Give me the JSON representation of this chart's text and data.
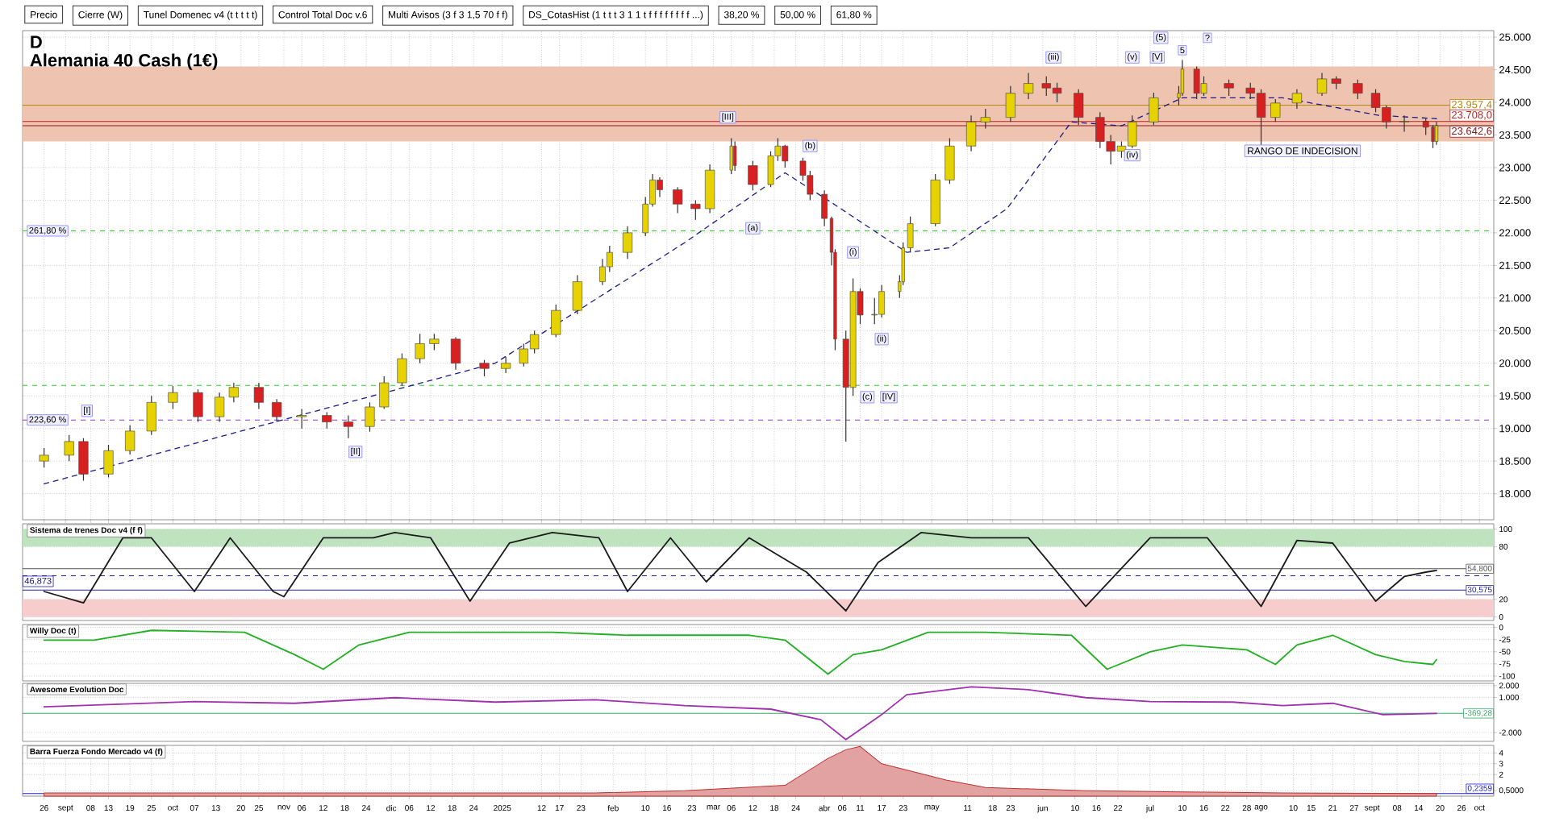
{
  "chart_data": [
    {
      "type": "candlestick",
      "title": "D",
      "subtitle": "Alemania 40 Cash (1€)",
      "annotations": [
        "Precio",
        "Cierre (W)",
        "Tunel Domenec v4 (t t t t t)",
        "Control Total Doc v.6",
        "Multi Avisos (3 f 3 1,5 70 f f)",
        "DS_CotasHist (1 t t t 3 1 1 t f f f f f f f f ...)",
        "38,20 %",
        "50,00 %",
        "61,80 %",
        {
          "text": "[III]",
          "x": "2025-03-05",
          "y": 23770
        },
        {
          "text": "(a)",
          "x": "2025-03-12",
          "y": 22070
        },
        {
          "text": "(b)",
          "x": "2025-03-28",
          "y": 23330
        },
        {
          "text": "(i)",
          "x": "2025-04-09",
          "y": 21700
        },
        {
          "text": "(ii)",
          "x": "2025-04-17",
          "y": 20370
        },
        {
          "text": "(c)",
          "x": "2025-04-13",
          "y": 19480
        },
        {
          "text": "[IV]",
          "x": "2025-04-19",
          "y": 19480
        },
        {
          "text": "(iii)",
          "x": "2025-06-04",
          "y": 24690
        },
        {
          "text": "(iv)",
          "x": "2025-06-26",
          "y": 23190
        },
        {
          "text": "(v)",
          "x": "2025-06-26",
          "y": 24690
        },
        {
          "text": "[V]",
          "x": "2025-07-03",
          "y": 24690
        },
        {
          "text": "(5)",
          "x": "2025-07-04",
          "y": 24990
        },
        {
          "text": "5",
          "x": "2025-07-10",
          "y": 24800
        },
        {
          "text": "?",
          "x": "2025-07-17",
          "y": 24990
        },
        {
          "text": "[I]",
          "x": "2024-09-07",
          "y": 19270
        },
        {
          "text": "261,80 %",
          "x": "2024-08-27",
          "y": 22030
        },
        {
          "text": "223,60 %",
          "x": "2024-08-27",
          "y": 19130
        },
        {
          "text": "[II]",
          "x": "2024-11-21",
          "y": 18640
        }
      ],
      "x": [
        "2024-08-26",
        "2024-09-02",
        "2024-09-06",
        "2024-09-13",
        "2024-09-19",
        "2024-09-25",
        "2024-10-01",
        "2024-10-08",
        "2024-10-14",
        "2024-10-18",
        "2024-10-25",
        "2024-10-30",
        "2024-11-06",
        "2024-11-13",
        "2024-11-19",
        "2024-11-25",
        "2024-11-29",
        "2024-12-04",
        "2024-12-09",
        "2024-12-13",
        "2024-12-19",
        "2024-12-27",
        "2025-01-02",
        "2025-01-07",
        "2025-01-10",
        "2025-01-16",
        "2025-01-22",
        "2025-01-29",
        "2025-01-31",
        "2025-02-05",
        "2025-02-10",
        "2025-02-12",
        "2025-02-14",
        "2025-02-19",
        "2025-02-24",
        "2025-02-28",
        "2025-03-06",
        "2025-03-07",
        "2025-03-12",
        "2025-03-17",
        "2025-03-19",
        "2025-03-21",
        "2025-03-26",
        "2025-03-28",
        "2025-04-01",
        "2025-04-03",
        "2025-04-04",
        "2025-04-07",
        "2025-04-09",
        "2025-04-11",
        "2025-04-15",
        "2025-04-17",
        "2025-04-22",
        "2025-04-23",
        "2025-04-25",
        "2025-05-02",
        "2025-05-06",
        "2025-05-12",
        "2025-05-16",
        "2025-05-23",
        "2025-05-28",
        "2025-06-02",
        "2025-06-05",
        "2025-06-11",
        "2025-06-17",
        "2025-06-20",
        "2025-06-23",
        "2025-06-26",
        "2025-07-02",
        "2025-07-09",
        "2025-07-10",
        "2025-07-14",
        "2025-07-16",
        "2025-07-23",
        "2025-07-29",
        "2025-08-01",
        "2025-08-05",
        "2025-08-11",
        "2025-08-18",
        "2025-08-22",
        "2025-08-28",
        "2025-09-02",
        "2025-09-05",
        "2025-09-10",
        "2025-09-16",
        "2025-09-18",
        "2025-09-19"
      ],
      "ohlc": [
        [
          18500,
          18700,
          18400,
          18590
        ],
        [
          18590,
          18900,
          18500,
          18800
        ],
        [
          18800,
          18850,
          18200,
          18300
        ],
        [
          18300,
          18750,
          18250,
          18660
        ],
        [
          18660,
          19050,
          18600,
          18960
        ],
        [
          18960,
          19500,
          18900,
          19400
        ],
        [
          19400,
          19650,
          19300,
          19550
        ],
        [
          19550,
          19600,
          19100,
          19180
        ],
        [
          19180,
          19550,
          19100,
          19480
        ],
        [
          19480,
          19700,
          19400,
          19630
        ],
        [
          19630,
          19700,
          19300,
          19400
        ],
        [
          19400,
          19450,
          19100,
          19180
        ],
        [
          19180,
          19300,
          19000,
          19200
        ],
        [
          19200,
          19250,
          19000,
          19100
        ],
        [
          19100,
          19200,
          18850,
          19030
        ],
        [
          19030,
          19400,
          18950,
          19330
        ],
        [
          19330,
          19800,
          19300,
          19700
        ],
        [
          19700,
          20150,
          19650,
          20070
        ],
        [
          20070,
          20450,
          20000,
          20300
        ],
        [
          20300,
          20450,
          20200,
          20370
        ],
        [
          20370,
          20400,
          19900,
          20000
        ],
        [
          20000,
          20050,
          19800,
          19920
        ],
        [
          19920,
          20100,
          19850,
          20000
        ],
        [
          20000,
          20300,
          19950,
          20220
        ],
        [
          20220,
          20500,
          20150,
          20440
        ],
        [
          20440,
          20900,
          20400,
          20810
        ],
        [
          20810,
          21350,
          20750,
          21250
        ],
        [
          21250,
          21600,
          21200,
          21480
        ],
        [
          21480,
          21800,
          21400,
          21700
        ],
        [
          21700,
          22100,
          21600,
          22000
        ],
        [
          22000,
          22550,
          21950,
          22440
        ],
        [
          22440,
          22900,
          22400,
          22810
        ],
        [
          22810,
          22850,
          22550,
          22660
        ],
        [
          22660,
          22700,
          22300,
          22440
        ],
        [
          22440,
          22500,
          22200,
          22370
        ],
        [
          22370,
          23050,
          22300,
          22960
        ],
        [
          22960,
          23450,
          22900,
          23330
        ],
        [
          23330,
          23400,
          22950,
          23030
        ],
        [
          23030,
          23100,
          22650,
          22740
        ],
        [
          22740,
          23250,
          22700,
          23180
        ],
        [
          23180,
          23450,
          23100,
          23330
        ],
        [
          23330,
          23350,
          23000,
          23100
        ],
        [
          23100,
          23150,
          22800,
          22880
        ],
        [
          22880,
          22950,
          22500,
          22590
        ],
        [
          22590,
          22650,
          22100,
          22220
        ],
        [
          22220,
          22250,
          21500,
          21700
        ],
        [
          21700,
          21750,
          20200,
          20370
        ],
        [
          20370,
          20500,
          18800,
          19630
        ],
        [
          19630,
          21300,
          19500,
          21100
        ],
        [
          21100,
          21150,
          20600,
          20740
        ],
        [
          20740,
          21000,
          20600,
          20750
        ],
        [
          20750,
          21200,
          20700,
          21100
        ],
        [
          21100,
          21350,
          21000,
          21250
        ],
        [
          21250,
          21850,
          21200,
          21770
        ],
        [
          21770,
          22250,
          21700,
          22140
        ],
        [
          22140,
          22900,
          22100,
          22810
        ],
        [
          22810,
          23450,
          22750,
          23330
        ],
        [
          23330,
          23800,
          23250,
          23700
        ],
        [
          23700,
          23900,
          23600,
          23770
        ],
        [
          23770,
          24250,
          23700,
          24140
        ],
        [
          24140,
          24450,
          24050,
          24290
        ],
        [
          24290,
          24400,
          24100,
          24220
        ],
        [
          24220,
          24300,
          24000,
          24140
        ],
        [
          24140,
          24200,
          23650,
          23770
        ],
        [
          23770,
          23850,
          23300,
          23400
        ],
        [
          23400,
          23500,
          23050,
          23250
        ],
        [
          23250,
          23400,
          23150,
          23330
        ],
        [
          23330,
          23800,
          23300,
          23700
        ],
        [
          23700,
          24150,
          23650,
          24070
        ],
        [
          24070,
          24250,
          23950,
          24140
        ],
        [
          24140,
          24650,
          24100,
          24510
        ],
        [
          24510,
          24550,
          24050,
          24140
        ],
        [
          24140,
          24400,
          24100,
          24290
        ],
        [
          24290,
          24350,
          24100,
          24220
        ],
        [
          24220,
          24300,
          24050,
          24140
        ],
        [
          24140,
          24200,
          23350,
          23770
        ],
        [
          23770,
          24050,
          23700,
          23990
        ],
        [
          23990,
          24200,
          23900,
          24140
        ],
        [
          24140,
          24450,
          24100,
          24360
        ],
        [
          24360,
          24400,
          24200,
          24290
        ],
        [
          24290,
          24350,
          24050,
          24140
        ],
        [
          24140,
          24200,
          23850,
          23920
        ],
        [
          23920,
          23950,
          23600,
          23700
        ],
        [
          23700,
          23800,
          23550,
          23710
        ],
        [
          23710,
          23750,
          23500,
          23620
        ],
        [
          23620,
          23650,
          23300,
          23400
        ],
        [
          23400,
          23700,
          23350,
          23642.6
        ]
      ],
      "colors": [
        "#e6d200",
        "#e6d200",
        "#d92020",
        "#e6d200",
        "#e6d200",
        "#e6d200",
        "#e6d200",
        "#d92020",
        "#e6d200",
        "#e6d200",
        "#d92020",
        "#d92020",
        "#e6d200",
        "#d92020",
        "#d92020",
        "#e6d200",
        "#e6d200",
        "#e6d200",
        "#e6d200",
        "#e6d200",
        "#d92020",
        "#d92020",
        "#e6d200",
        "#e6d200",
        "#e6d200",
        "#e6d200",
        "#e6d200",
        "#e6d200",
        "#e6d200",
        "#e6d200",
        "#e6d200",
        "#e6d200",
        "#d92020",
        "#d92020",
        "#d92020",
        "#e6d200",
        "#e6d200",
        "#d92020",
        "#d92020",
        "#e6d200",
        "#e6d200",
        "#d92020",
        "#d92020",
        "#d92020",
        "#d92020",
        "#d92020",
        "#d92020",
        "#d92020",
        "#e6d200",
        "#d92020",
        "#e6d200",
        "#e6d200",
        "#e6d200",
        "#e6d200",
        "#e6d200",
        "#e6d200",
        "#e6d200",
        "#e6d200",
        "#e6d200",
        "#e6d200",
        "#e6d200",
        "#d92020",
        "#d92020",
        "#d92020",
        "#d92020",
        "#d92020",
        "#e6d200",
        "#e6d200",
        "#e6d200",
        "#e6d200",
        "#e6d200",
        "#d92020",
        "#e6d200",
        "#d92020",
        "#d92020",
        "#d92020",
        "#e6d200",
        "#e6d200",
        "#e6d200",
        "#d92020",
        "#d92020",
        "#d92020",
        "#d92020",
        "#e6d200",
        "#d92020",
        "#d92020",
        "#e6d200"
      ],
      "series": [
        {
          "type": "line",
          "color": "#1a1a8c",
          "line_style": "dashed",
          "x": [
            "2024-08-26",
            "2024-11-04",
            "2024-12-30",
            "2025-02-21",
            "2025-03-21",
            "2025-04-02",
            "2025-04-24",
            "2025-05-06",
            "2025-05-22",
            "2025-06-09",
            "2025-06-23",
            "2025-07-10",
            "2025-08-07",
            "2025-09-03",
            "2025-09-19"
          ],
          "values": [
            18150,
            19180,
            20000,
            21850,
            22920,
            22500,
            21700,
            21770,
            22370,
            23700,
            23640,
            24070,
            24070,
            23800,
            23750
          ]
        }
      ],
      "bands": [
        {
          "axis": "y",
          "from": 23400,
          "to": 24550,
          "label": "RANGO DE INDECISION",
          "color": "#eec3b0"
        }
      ],
      "ref_lines": [
        {
          "axis": "y",
          "value": 22030,
          "color": "#33cc33",
          "line_style": "dashed"
        },
        {
          "axis": "y",
          "value": 19660,
          "color": "#33cc33",
          "line_style": "dashed"
        },
        {
          "axis": "y",
          "value": 19130,
          "color": "#9933cc",
          "line_style": "dashed"
        },
        {
          "axis": "y",
          "value": 23957.4,
          "label": "23.957,4",
          "color": "#b8860b",
          "line_style": "solid"
        },
        {
          "axis": "y",
          "value": 23708,
          "label": "23.708,0",
          "color": "#c02020",
          "line_style": "solid"
        },
        {
          "axis": "y",
          "value": 23642.6,
          "label": "23.642,6",
          "color": "#8b1a1a",
          "line_style": "solid"
        }
      ],
      "xlim": [
        "2024-08-20",
        "2025-10-05"
      ],
      "ylim": [
        17600,
        25100
      ],
      "xticks": [
        {
          "value": "2024-08-26",
          "label": null
        },
        {
          "value": "2024-09-01",
          "label": null
        },
        {
          "value": "2024-09-08",
          "label": null
        },
        {
          "value": "2024-09-13",
          "label": null
        },
        {
          "value": "2024-09-19",
          "label": null
        },
        {
          "value": "2024-09-25",
          "label": null
        },
        {
          "value": "2024-10-01",
          "label": null
        },
        {
          "value": "2024-10-07",
          "label": null
        },
        {
          "value": "2024-10-13",
          "label": null
        },
        {
          "value": "2024-10-20",
          "label": null
        },
        {
          "value": "2024-10-25",
          "label": null
        },
        {
          "value": "2024-11-01",
          "label": null
        },
        {
          "value": "2024-11-06",
          "label": null
        },
        {
          "value": "2024-11-12",
          "label": null
        },
        {
          "value": "2024-11-18",
          "label": null
        },
        {
          "value": "2024-11-24",
          "label": null
        },
        {
          "value": "2024-12-01",
          "label": null
        },
        {
          "value": "2024-12-06",
          "label": null
        },
        {
          "value": "2024-12-12",
          "label": null
        },
        {
          "value": "2024-12-18",
          "label": null
        },
        {
          "value": "2024-12-24",
          "label": null
        },
        {
          "value": "2025-01-01",
          "label": null
        },
        {
          "value": "2025-01-12",
          "label": null
        },
        {
          "value": "2025-01-17",
          "label": null
        },
        {
          "value": "2025-01-23",
          "label": null
        },
        {
          "value": "2025-02-01",
          "label": null
        },
        {
          "value": "2025-02-10",
          "label": null
        },
        {
          "value": "2025-02-16",
          "label": null
        },
        {
          "value": "2025-02-23",
          "label": null
        },
        {
          "value": "2025-03-01",
          "label": null
        },
        {
          "value": "2025-03-06",
          "label": null
        },
        {
          "value": "2025-03-12",
          "label": null
        },
        {
          "value": "2025-03-18",
          "label": null
        },
        {
          "value": "2025-03-24",
          "label": null
        },
        {
          "value": "2025-04-01",
          "label": null
        },
        {
          "value": "2025-04-06",
          "label": null
        },
        {
          "value": "2025-04-11",
          "label": null
        },
        {
          "value": "2025-04-17",
          "label": null
        },
        {
          "value": "2025-04-23",
          "label": null
        },
        {
          "value": "2025-05-01",
          "label": null
        },
        {
          "value": "2025-05-11",
          "label": null
        },
        {
          "value": "2025-05-18",
          "label": null
        },
        {
          "value": "2025-05-23",
          "label": null
        },
        {
          "value": "2025-06-01",
          "label": null
        },
        {
          "value": "2025-06-10",
          "label": null
        },
        {
          "value": "2025-06-16",
          "label": null
        },
        {
          "value": "2025-06-22",
          "label": null
        },
        {
          "value": "2025-07-01",
          "label": null
        },
        {
          "value": "2025-07-10",
          "label": null
        },
        {
          "value": "2025-07-16",
          "label": null
        },
        {
          "value": "2025-07-22",
          "label": null
        },
        {
          "value": "2025-07-28",
          "label": null
        },
        {
          "value": "2025-08-01",
          "label": null
        },
        {
          "value": "2025-08-10",
          "label": null
        },
        {
          "value": "2025-08-15",
          "label": null
        },
        {
          "value": "2025-08-21",
          "label": null
        },
        {
          "value": "2025-08-27",
          "label": null
        },
        {
          "value": "2025-09-01",
          "label": null
        },
        {
          "value": "2025-09-08",
          "label": null
        },
        {
          "value": "2025-09-14",
          "label": null
        },
        {
          "value": "2025-09-20",
          "label": null
        },
        {
          "value": "2025-09-26",
          "label": null
        },
        {
          "value": "2025-10-01",
          "label": null
        }
      ],
      "yticks": [
        {
          "value": 18000,
          "label": "18.000"
        },
        {
          "value": 18500,
          "label": "18.500"
        },
        {
          "value": 19000,
          "label": "19.000"
        },
        {
          "value": 19500,
          "label": "19.500"
        },
        {
          "value": 20000,
          "label": "20.000"
        },
        {
          "value": 20500,
          "label": "20.500"
        },
        {
          "value": 21000,
          "label": "21.000"
        },
        {
          "value": 21500,
          "label": "21.500"
        },
        {
          "value": 22000,
          "label": "22.000"
        },
        {
          "value": 22500,
          "label": "22.500"
        },
        {
          "value": 23000,
          "label": "23.000"
        },
        {
          "value": 23500,
          "label": "23.500"
        },
        {
          "value": 24000,
          "label": "24.000"
        },
        {
          "value": 24500,
          "label": "24.500"
        },
        {
          "value": 25000,
          "label": "25.000"
        }
      ],
      "tick_labels": "y",
      "grid": true
    },
    {
      "type": "line",
      "title": "Sistema de trenes Doc v4 (f f)",
      "color": "#1a1a1a",
      "x": [
        "2024-08-26",
        "2024-09-06",
        "2024-09-17",
        "2024-09-25",
        "2024-10-07",
        "2024-10-17",
        "2024-10-29",
        "2024-11-01",
        "2024-11-12",
        "2024-11-26",
        "2024-12-02",
        "2024-12-12",
        "2024-12-23",
        "2025-01-03",
        "2025-01-15",
        "2025-01-28",
        "2025-02-05",
        "2025-02-17",
        "2025-02-27",
        "2025-03-11",
        "2025-03-27",
        "2025-04-07",
        "2025-04-16",
        "2025-04-28",
        "2025-05-12",
        "2025-05-28",
        "2025-06-13",
        "2025-07-01",
        "2025-07-17",
        "2025-08-01",
        "2025-08-11",
        "2025-08-21",
        "2025-09-02",
        "2025-09-10",
        "2025-09-16",
        "2025-09-19"
      ],
      "values": [
        29,
        16,
        90,
        90,
        29,
        90,
        29,
        23,
        90,
        90,
        96,
        90,
        18,
        84,
        96,
        90,
        29,
        90,
        40,
        90,
        51,
        7,
        62,
        96,
        90,
        90,
        12,
        90,
        90,
        12,
        87,
        84,
        18,
        46,
        51,
        53
      ],
      "ref_lines": [
        {
          "axis": "y",
          "value": 54.8,
          "label": "54,800",
          "color": "#555555",
          "line_style": "solid"
        },
        {
          "axis": "y",
          "value": 46.873,
          "label": "46,873",
          "color": "#2020a0",
          "line_style": "dashed"
        },
        {
          "axis": "y",
          "value": 30.575,
          "label": "30,575",
          "color": "#2020a0",
          "line_style": "solid"
        }
      ],
      "bands": [
        {
          "axis": "y",
          "from": 80,
          "to": 100,
          "color": "#bfe3bf"
        },
        {
          "axis": "y",
          "from": 0,
          "to": 20,
          "color": "#f6cccc"
        }
      ],
      "xlim": [
        "2024-08-20",
        "2025-10-05"
      ],
      "ylim": [
        -4,
        106
      ],
      "yticks": [
        0,
        20,
        80,
        100
      ],
      "tick_labels": "y",
      "grid": "y"
    },
    {
      "type": "line",
      "title": "Willy Doc (t)",
      "color": "#22b022",
      "x": [
        "2024-08-26",
        "2024-09-09",
        "2024-09-25",
        "2024-10-21",
        "2024-11-04",
        "2024-11-12",
        "2024-11-22",
        "2024-12-06",
        "2024-12-23",
        "2025-01-15",
        "2025-02-05",
        "2025-02-21",
        "2025-03-11",
        "2025-03-21",
        "2025-04-02",
        "2025-04-09",
        "2025-04-17",
        "2025-04-30",
        "2025-05-16",
        "2025-06-09",
        "2025-06-19",
        "2025-07-01",
        "2025-07-10",
        "2025-07-28",
        "2025-08-05",
        "2025-08-11",
        "2025-08-21",
        "2025-09-02",
        "2025-09-10",
        "2025-09-18",
        "2025-09-19"
      ],
      "values": [
        -26,
        -26,
        -6,
        -10,
        -56,
        -86,
        -36,
        -10,
        -10,
        -10,
        -16,
        -16,
        -16,
        -26,
        -96,
        -56,
        -46,
        -10,
        -10,
        -16,
        -86,
        -50,
        -36,
        -46,
        -76,
        -36,
        -16,
        -56,
        -70,
        -76,
        -66
      ],
      "xlim": [
        "2024-08-20",
        "2025-10-05"
      ],
      "ylim": [
        -110,
        6
      ],
      "yticks": [
        0,
        -25,
        -50,
        -75,
        -100
      ],
      "tick_labels": "y",
      "grid": "y"
    },
    {
      "type": "line",
      "title": "Awesome Evolution Doc",
      "color": "#a030b0",
      "x": [
        "2024-08-26",
        "2024-10-07",
        "2024-11-04",
        "2024-12-02",
        "2024-12-30",
        "2025-01-27",
        "2025-02-21",
        "2025-03-17",
        "2025-03-31",
        "2025-04-07",
        "2025-04-17",
        "2025-04-24",
        "2025-05-12",
        "2025-05-28",
        "2025-06-13",
        "2025-07-01",
        "2025-07-24",
        "2025-08-07",
        "2025-08-21",
        "2025-09-04",
        "2025-09-19"
      ],
      "values": [
        200,
        640,
        500,
        980,
        600,
        800,
        300,
        0,
        -900,
        -2600,
        -470,
        1230,
        1900,
        1660,
        980,
        640,
        600,
        300,
        500,
        -470,
        -370
      ],
      "ref_lines": [
        {
          "axis": "y",
          "value": -369.28,
          "label": "-369,28",
          "color": "#33aa66",
          "line_style": "solid"
        }
      ],
      "xlim": [
        "2024-08-20",
        "2025-10-05"
      ],
      "ylim": [
        -2750,
        2200
      ],
      "yticks": [
        {
          "value": 2000,
          "label": "2.000"
        },
        {
          "value": 1000,
          "label": "1.000"
        },
        {
          "value": -2000,
          "label": "-2.000"
        }
      ],
      "tick_labels": "y",
      "grid": "y"
    },
    {
      "type": "area",
      "title": "Barra Fuerza Fondo Mercado v4 (f)",
      "color": "#c03030",
      "x": [
        "2024-08-26",
        "2024-10-07",
        "2024-12-02",
        "2025-01-27",
        "2025-02-21",
        "2025-03-21",
        "2025-04-02",
        "2025-04-07",
        "2025-04-11",
        "2025-04-17",
        "2025-05-05",
        "2025-05-16",
        "2025-06-13",
        "2025-07-10",
        "2025-08-07",
        "2025-09-19"
      ],
      "values": [
        0.3,
        0.3,
        0.3,
        0.3,
        0.5,
        1,
        3.5,
        4.3,
        4.6,
        3,
        1.5,
        0.8,
        0.5,
        0.4,
        0.3,
        0.24
      ],
      "ref_lines": [
        {
          "axis": "y",
          "value": 0.2359,
          "label": "0,2359",
          "color": "#2020d0",
          "line_style": "solid"
        }
      ],
      "xlim": [
        "2024-08-20",
        "2025-10-05"
      ],
      "ylim": [
        0,
        4.7
      ],
      "yticks": [
        4,
        3,
        2,
        {
          "value": 0.5,
          "label": "0,5000"
        }
      ],
      "xticks": [
        {
          "value": "2024-08-26",
          "label": "26"
        },
        {
          "value": "2024-09-01",
          "label": "sept"
        },
        {
          "value": "2024-09-08",
          "label": "08"
        },
        {
          "value": "2024-09-13",
          "label": "13"
        },
        {
          "value": "2024-09-19",
          "label": "19"
        },
        {
          "value": "2024-09-25",
          "label": "25"
        },
        {
          "value": "2024-10-01",
          "label": "oct"
        },
        {
          "value": "2024-10-07",
          "label": "07"
        },
        {
          "value": "2024-10-13",
          "label": "13"
        },
        {
          "value": "2024-10-20",
          "label": "20"
        },
        {
          "value": "2024-10-25",
          "label": "25"
        },
        {
          "value": "2024-11-01",
          "label": "nov"
        },
        {
          "value": "2024-11-06",
          "label": "06"
        },
        {
          "value": "2024-11-12",
          "label": "12"
        },
        {
          "value": "2024-11-18",
          "label": "18"
        },
        {
          "value": "2024-11-24",
          "label": "24"
        },
        {
          "value": "2024-12-01",
          "label": "dic"
        },
        {
          "value": "2024-12-06",
          "label": "06"
        },
        {
          "value": "2024-12-12",
          "label": "12"
        },
        {
          "value": "2024-12-18",
          "label": "18"
        },
        {
          "value": "2024-12-24",
          "label": "24"
        },
        {
          "value": "2025-01-01",
          "label": "2025"
        },
        {
          "value": "2025-01-12",
          "label": "12"
        },
        {
          "value": "2025-01-17",
          "label": "17"
        },
        {
          "value": "2025-01-23",
          "label": "23"
        },
        {
          "value": "2025-02-01",
          "label": "feb"
        },
        {
          "value": "2025-02-10",
          "label": "10"
        },
        {
          "value": "2025-02-16",
          "label": "16"
        },
        {
          "value": "2025-02-23",
          "label": "23"
        },
        {
          "value": "2025-03-01",
          "label": "mar"
        },
        {
          "value": "2025-03-06",
          "label": "06"
        },
        {
          "value": "2025-03-12",
          "label": "12"
        },
        {
          "value": "2025-03-18",
          "label": "18"
        },
        {
          "value": "2025-03-24",
          "label": "24"
        },
        {
          "value": "2025-04-01",
          "label": "abr"
        },
        {
          "value": "2025-04-06",
          "label": "06"
        },
        {
          "value": "2025-04-11",
          "label": "11"
        },
        {
          "value": "2025-04-17",
          "label": "17"
        },
        {
          "value": "2025-04-23",
          "label": "23"
        },
        {
          "value": "2025-05-01",
          "label": "may"
        },
        {
          "value": "2025-05-11",
          "label": "11"
        },
        {
          "value": "2025-05-18",
          "label": "18"
        },
        {
          "value": "2025-05-23",
          "label": "23"
        },
        {
          "value": "2025-06-01",
          "label": "jun"
        },
        {
          "value": "2025-06-10",
          "label": "10"
        },
        {
          "value": "2025-06-16",
          "label": "16"
        },
        {
          "value": "2025-06-22",
          "label": "22"
        },
        {
          "value": "2025-07-01",
          "label": "jul"
        },
        {
          "value": "2025-07-10",
          "label": "10"
        },
        {
          "value": "2025-07-16",
          "label": "16"
        },
        {
          "value": "2025-07-22",
          "label": "22"
        },
        {
          "value": "2025-07-28",
          "label": "28"
        },
        {
          "value": "2025-08-01",
          "label": "ago"
        },
        {
          "value": "2025-08-10",
          "label": "10"
        },
        {
          "value": "2025-08-15",
          "label": "15"
        },
        {
          "value": "2025-08-21",
          "label": "21"
        },
        {
          "value": "2025-08-27",
          "label": "27"
        },
        {
          "value": "2025-09-01",
          "label": "sept"
        },
        {
          "value": "2025-09-08",
          "label": "08"
        },
        {
          "value": "2025-09-14",
          "label": "14"
        },
        {
          "value": "2025-09-20",
          "label": "20"
        },
        {
          "value": "2025-09-26",
          "label": "26"
        },
        {
          "value": "2025-10-01",
          "label": "oct"
        }
      ],
      "grid": true
    }
  ]
}
